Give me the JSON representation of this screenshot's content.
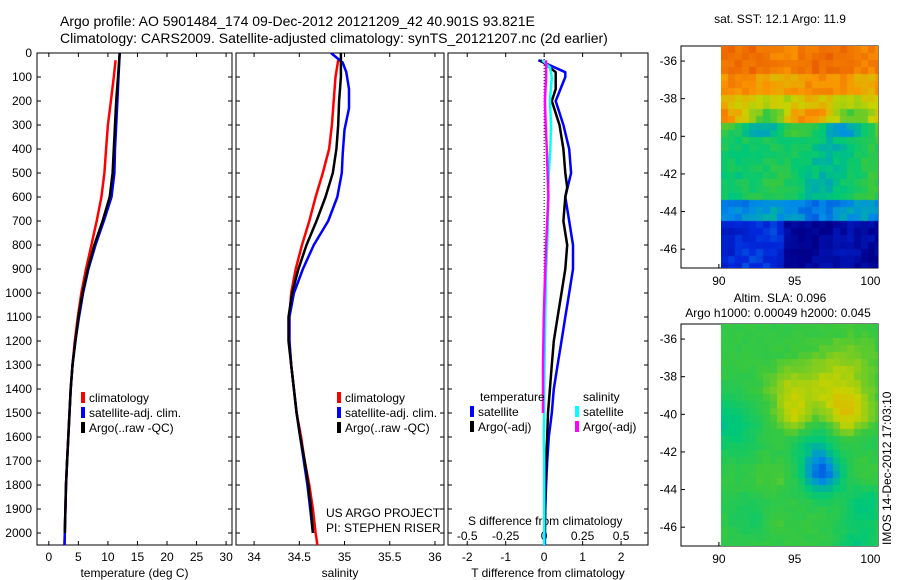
{
  "header": {
    "line1": "Argo profile: AO 5901484_174 09-Dec-2012 20121209_42 40.901S 93.821E",
    "line2": "Climatology: CARS2009. Satellite-adjusted climatology: synTS_20121207.nc (2d earlier)"
  },
  "colors": {
    "red": "#ff0000",
    "blue": "#0000ff",
    "black": "#000000",
    "cyan": "#00ffff",
    "magenta": "#ff00ff"
  },
  "chart_data": [
    {
      "type": "line",
      "name": "temperature-profile",
      "xlabel": "temperature (deg C)",
      "ylabel": "",
      "xlim": [
        -2,
        31
      ],
      "ylim": [
        2050,
        0
      ],
      "xticks": [
        0,
        5,
        10,
        15,
        20,
        25,
        30
      ],
      "yticks": [
        0,
        100,
        200,
        300,
        400,
        500,
        600,
        700,
        800,
        900,
        1000,
        1100,
        1200,
        1300,
        1400,
        1500,
        1600,
        1700,
        1800,
        1900,
        2000
      ],
      "legend": {
        "position": "lower-center",
        "entries": [
          "climatology",
          "satellite-adj. clim.",
          "Argo(..raw -QC)"
        ]
      },
      "series": [
        {
          "name": "climatology",
          "color": "red",
          "points": [
            [
              11.3,
              30
            ],
            [
              11.0,
              100
            ],
            [
              10.5,
              200
            ],
            [
              10.0,
              300
            ],
            [
              9.7,
              400
            ],
            [
              9.4,
              500
            ],
            [
              8.9,
              600
            ],
            [
              8.1,
              700
            ],
            [
              7.2,
              800
            ],
            [
              6.3,
              900
            ],
            [
              5.5,
              1000
            ],
            [
              4.9,
              1100
            ],
            [
              4.4,
              1200
            ],
            [
              4.0,
              1300
            ],
            [
              3.7,
              1400
            ],
            [
              3.5,
              1500
            ],
            [
              3.3,
              1600
            ],
            [
              3.1,
              1700
            ],
            [
              2.9,
              1800
            ],
            [
              2.8,
              1900
            ],
            [
              2.7,
              2000
            ],
            [
              2.65,
              2050
            ]
          ]
        },
        {
          "name": "satellite-adj. clim.",
          "color": "blue",
          "points": [
            [
              12.0,
              0
            ],
            [
              11.8,
              100
            ],
            [
              11.6,
              200
            ],
            [
              11.4,
              300
            ],
            [
              11.2,
              400
            ],
            [
              11.1,
              500
            ],
            [
              10.6,
              600
            ],
            [
              9.3,
              700
            ],
            [
              7.9,
              800
            ],
            [
              6.7,
              900
            ],
            [
              5.8,
              1000
            ],
            [
              5.1,
              1100
            ],
            [
              4.5,
              1200
            ],
            [
              4.0,
              1300
            ],
            [
              3.7,
              1400
            ],
            [
              3.5,
              1500
            ],
            [
              3.3,
              1600
            ],
            [
              3.1,
              1700
            ],
            [
              2.9,
              1800
            ],
            [
              2.8,
              1900
            ],
            [
              2.7,
              2000
            ],
            [
              2.65,
              2050
            ]
          ]
        },
        {
          "name": "Argo(..raw -QC)",
          "color": "black",
          "points": [
            [
              12.0,
              0
            ],
            [
              11.7,
              100
            ],
            [
              11.4,
              200
            ],
            [
              11.2,
              300
            ],
            [
              11.0,
              400
            ],
            [
              10.8,
              500
            ],
            [
              10.3,
              600
            ],
            [
              9.1,
              700
            ],
            [
              7.7,
              800
            ],
            [
              6.6,
              900
            ],
            [
              5.7,
              1000
            ],
            [
              5.0,
              1100
            ],
            [
              4.5,
              1200
            ],
            [
              4.0,
              1300
            ],
            [
              3.7,
              1400
            ],
            [
              3.5,
              1500
            ],
            [
              3.3,
              1600
            ],
            [
              3.1,
              1700
            ],
            [
              2.9,
              1800
            ],
            [
              2.8,
              1900
            ],
            [
              2.7,
              2000
            ]
          ]
        }
      ]
    },
    {
      "type": "line",
      "name": "salinity-profile",
      "xlabel": "salinity",
      "ylabel": "",
      "xlim": [
        33.8,
        36.1
      ],
      "ylim": [
        2050,
        0
      ],
      "xticks": [
        34,
        34.5,
        35,
        35.5,
        36
      ],
      "xticklabels": [
        "34",
        "34.5",
        "35",
        "35.5",
        "36"
      ],
      "legend": {
        "position": "lower-center",
        "entries": [
          "climatology",
          "satellite-adj. clim.",
          "Argo(..raw -QC)"
        ]
      },
      "annotations": [
        "US ARGO PROJECT",
        "PI: STEPHEN RISER"
      ],
      "series": [
        {
          "name": "climatology",
          "color": "red",
          "points": [
            [
              34.93,
              30
            ],
            [
              34.9,
              100
            ],
            [
              34.88,
              200
            ],
            [
              34.86,
              300
            ],
            [
              34.83,
              400
            ],
            [
              34.76,
              500
            ],
            [
              34.68,
              600
            ],
            [
              34.61,
              700
            ],
            [
              34.53,
              800
            ],
            [
              34.46,
              900
            ],
            [
              34.41,
              1000
            ],
            [
              34.39,
              1100
            ],
            [
              34.39,
              1200
            ],
            [
              34.41,
              1300
            ],
            [
              34.44,
              1400
            ],
            [
              34.47,
              1500
            ],
            [
              34.52,
              1600
            ],
            [
              34.56,
              1700
            ],
            [
              34.61,
              1800
            ],
            [
              34.65,
              1900
            ],
            [
              34.68,
              2000
            ],
            [
              34.7,
              2050
            ]
          ]
        },
        {
          "name": "satellite-adj. clim.",
          "color": "blue",
          "points": [
            [
              34.85,
              0
            ],
            [
              34.98,
              40
            ],
            [
              35.02,
              80
            ],
            [
              35.05,
              150
            ],
            [
              35.05,
              230
            ],
            [
              35.0,
              320
            ],
            [
              34.98,
              420
            ],
            [
              34.97,
              500
            ],
            [
              34.92,
              600
            ],
            [
              34.82,
              700
            ],
            [
              34.66,
              800
            ],
            [
              34.54,
              900
            ],
            [
              34.44,
              1000
            ],
            [
              34.39,
              1100
            ],
            [
              34.39,
              1200
            ],
            [
              34.41,
              1300
            ],
            [
              34.44,
              1400
            ],
            [
              34.47,
              1500
            ],
            [
              34.51,
              1600
            ],
            [
              34.55,
              1700
            ],
            [
              34.59,
              1800
            ],
            [
              34.62,
              1900
            ],
            [
              34.65,
              2000
            ]
          ]
        },
        {
          "name": "Argo(..raw -QC)",
          "color": "black",
          "points": [
            [
              34.96,
              0
            ],
            [
              34.96,
              100
            ],
            [
              34.94,
              200
            ],
            [
              34.93,
              300
            ],
            [
              34.91,
              400
            ],
            [
              34.87,
              500
            ],
            [
              34.79,
              600
            ],
            [
              34.69,
              700
            ],
            [
              34.58,
              800
            ],
            [
              34.49,
              900
            ],
            [
              34.42,
              1000
            ],
            [
              34.38,
              1100
            ],
            [
              34.38,
              1200
            ],
            [
              34.41,
              1300
            ],
            [
              34.44,
              1400
            ],
            [
              34.47,
              1500
            ],
            [
              34.51,
              1600
            ],
            [
              34.56,
              1700
            ],
            [
              34.6,
              1800
            ],
            [
              34.63,
              1900
            ],
            [
              34.65,
              2000
            ]
          ]
        }
      ]
    },
    {
      "type": "line",
      "name": "difference-profile",
      "xlabel": "T difference from climatology",
      "secondary_xlabel": "S difference from climatology",
      "xlim": [
        -2.5,
        2.7
      ],
      "ylim": [
        2050,
        0
      ],
      "xticks": [
        -2,
        -1,
        0,
        1,
        2
      ],
      "secondary_xticks": [
        -0.5,
        -0.25,
        0,
        0.25,
        0.5
      ],
      "secondary_xticklabels": [
        "-0.5",
        "-0.25",
        "0",
        "0.25",
        "0.5"
      ],
      "legend": {
        "position": "lower-center",
        "groups": [
          {
            "title": "temperature",
            "entries": [
              "satellite",
              "Argo(-adj)"
            ]
          },
          {
            "title": "salinity",
            "entries": [
              "satellite",
              "Argo(-adj)"
            ]
          }
        ]
      },
      "series": [
        {
          "name": "temperature satellite",
          "color": "blue",
          "points": [
            [
              -0.15,
              30
            ],
            [
              0.55,
              80
            ],
            [
              0.55,
              100
            ],
            [
              0.3,
              200
            ],
            [
              0.5,
              300
            ],
            [
              0.65,
              400
            ],
            [
              0.7,
              500
            ],
            [
              0.55,
              600
            ],
            [
              0.65,
              700
            ],
            [
              0.75,
              800
            ],
            [
              0.75,
              900
            ],
            [
              0.65,
              1000
            ],
            [
              0.55,
              1100
            ],
            [
              0.45,
              1200
            ],
            [
              0.35,
              1300
            ],
            [
              0.25,
              1400
            ],
            [
              0.2,
              1500
            ],
            [
              0.12,
              1600
            ],
            [
              0.08,
              1700
            ],
            [
              0.05,
              1800
            ],
            [
              0.03,
              1900
            ],
            [
              0.02,
              2000
            ],
            [
              0.02,
              2050
            ]
          ]
        },
        {
          "name": "temperature Argo(-adj)",
          "color": "black",
          "points": [
            [
              -0.1,
              30
            ],
            [
              0.3,
              80
            ],
            [
              0.3,
              150
            ],
            [
              0.2,
              200
            ],
            [
              0.4,
              300
            ],
            [
              0.5,
              400
            ],
            [
              0.55,
              500
            ],
            [
              0.6,
              560
            ],
            [
              0.55,
              600
            ],
            [
              0.5,
              700
            ],
            [
              0.6,
              800
            ],
            [
              0.55,
              900
            ],
            [
              0.45,
              1000
            ],
            [
              0.35,
              1100
            ],
            [
              0.25,
              1200
            ],
            [
              0.2,
              1300
            ],
            [
              0.15,
              1400
            ],
            [
              0.1,
              1500
            ],
            [
              0.08,
              1600
            ],
            [
              0.05,
              1700
            ],
            [
              0.03,
              1800
            ],
            [
              0.02,
              1900
            ],
            [
              0.02,
              2000
            ]
          ]
        },
        {
          "name": "salinity satellite",
          "color": "cyan",
          "points": [
            [
              -0.05,
              30
            ],
            [
              0.15,
              60
            ],
            [
              0.2,
              100
            ],
            [
              0.15,
              200
            ],
            [
              0.18,
              300
            ],
            [
              0.16,
              400
            ],
            [
              0.12,
              500
            ],
            [
              0.1,
              600
            ],
            [
              0.1,
              700
            ],
            [
              0.08,
              800
            ],
            [
              0.05,
              900
            ],
            [
              0.04,
              1000
            ],
            [
              0.03,
              1100
            ],
            [
              0.02,
              1200
            ],
            [
              0.01,
              1300
            ],
            [
              0,
              1400
            ],
            [
              0,
              1500
            ],
            [
              -0.01,
              1600
            ],
            [
              0,
              1700
            ],
            [
              0,
              1800
            ],
            [
              0,
              1900
            ],
            [
              0,
              2000
            ],
            [
              0,
              2050
            ]
          ]
        },
        {
          "name": "salinity Argo(-adj)",
          "color": "magenta",
          "points": [
            [
              0.05,
              30
            ],
            [
              0.05,
              100
            ],
            [
              0.02,
              200
            ],
            [
              0.04,
              300
            ],
            [
              0.07,
              400
            ],
            [
              0.09,
              500
            ],
            [
              0.11,
              600
            ],
            [
              0.08,
              700
            ],
            [
              0.05,
              800
            ],
            [
              0.03,
              900
            ],
            [
              0.01,
              1000
            ],
            [
              -0.01,
              1100
            ],
            [
              -0.02,
              1200
            ],
            [
              -0.03,
              1300
            ],
            [
              -0.03,
              1400
            ],
            [
              -0.03,
              1500
            ]
          ]
        }
      ]
    },
    {
      "type": "heatmap",
      "name": "sst-map",
      "title": "sat. SST: 12.1  Argo: 11.9",
      "xlim": [
        87.5,
        100.5
      ],
      "ylim": [
        -47,
        -35.2
      ],
      "xticks": [
        90,
        95,
        100
      ],
      "yticks": [
        -36,
        -38,
        -40,
        -42,
        -44,
        -46
      ],
      "marker": {
        "lon": 93.8,
        "lat": -40.9
      }
    },
    {
      "type": "heatmap",
      "name": "sla-map",
      "title": "Altim. SLA: 0.096",
      "subtitle": "Argo h1000: 0.00049  h2000: 0.045",
      "xlim": [
        87.5,
        100.5
      ],
      "ylim": [
        -47,
        -35.2
      ],
      "xticks": [
        90,
        95,
        100
      ],
      "yticks": [
        -36,
        -38,
        -40,
        -42,
        -44,
        -46
      ],
      "marker": {
        "lon": 93.8,
        "lat": -40.9
      }
    }
  ],
  "timestamp_label": "IMOS 14-Dec-2012 17:03:10"
}
